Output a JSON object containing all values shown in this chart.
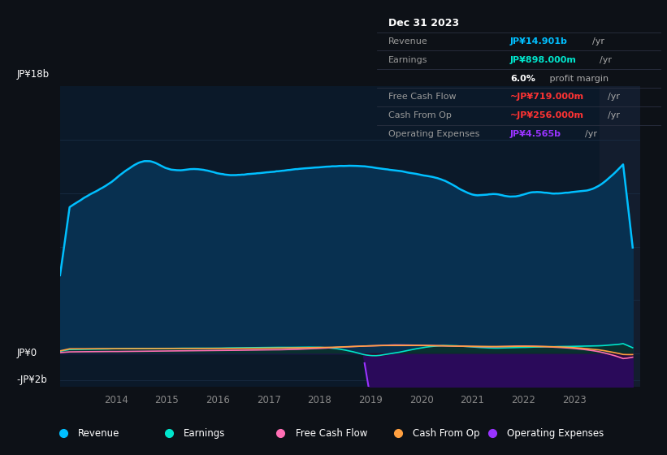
{
  "background_color": "#0d1117",
  "plot_bg_color": "#0b1929",
  "ylim_min": -2500000000.0,
  "ylim_max": 20000000000.0,
  "xlim_min": 2012.9,
  "xlim_max": 2024.3,
  "x_ticks": [
    2014,
    2015,
    2016,
    2017,
    2018,
    2019,
    2020,
    2021,
    2022,
    2023
  ],
  "grid_color": "#1a2e45",
  "y_label_top": "JP¥18b",
  "y_label_zero": "JP¥0",
  "y_label_neg": "-JP¥2b",
  "revenue_color": "#00bfff",
  "revenue_fill": "#083050",
  "earnings_color": "#00e5cc",
  "earnings_fill": "#0a3028",
  "fcf_color": "#ff6eb4",
  "cashop_color": "#ffa040",
  "opex_color": "#9933ff",
  "opex_fill": "#2a0a5a",
  "highlight_start": 2023.5,
  "highlight_color": "#131d2e",
  "tooltip_rows": [
    {
      "label": "Dec 31 2023",
      "value": "",
      "unit": "",
      "color": "#ffffff",
      "is_title": true
    },
    {
      "label": "Revenue",
      "value": "JP¥14.901b",
      "unit": "/yr",
      "color": "#00bfff",
      "is_title": false
    },
    {
      "label": "Earnings",
      "value": "JP¥898.000m",
      "unit": "/yr",
      "color": "#00e5cc",
      "is_title": false
    },
    {
      "label": "",
      "value": "6.0%",
      "unit": " profit margin",
      "color": "#ffffff",
      "is_title": false
    },
    {
      "label": "Free Cash Flow",
      "value": "~JP¥719.000m",
      "unit": "/yr",
      "color": "#ff3333",
      "is_title": false
    },
    {
      "label": "Cash From Op",
      "value": "~JP¥256.000m",
      "unit": "/yr",
      "color": "#ff3333",
      "is_title": false
    },
    {
      "label": "Operating Expenses",
      "value": "JP¥4.565b",
      "unit": "/yr",
      "color": "#9933ff",
      "is_title": false
    }
  ],
  "legend": [
    {
      "label": "Revenue",
      "color": "#00bfff"
    },
    {
      "label": "Earnings",
      "color": "#00e5cc"
    },
    {
      "label": "Free Cash Flow",
      "color": "#ff6eb4"
    },
    {
      "label": "Cash From Op",
      "color": "#ffa040"
    },
    {
      "label": "Operating Expenses",
      "color": "#9933ff"
    }
  ]
}
